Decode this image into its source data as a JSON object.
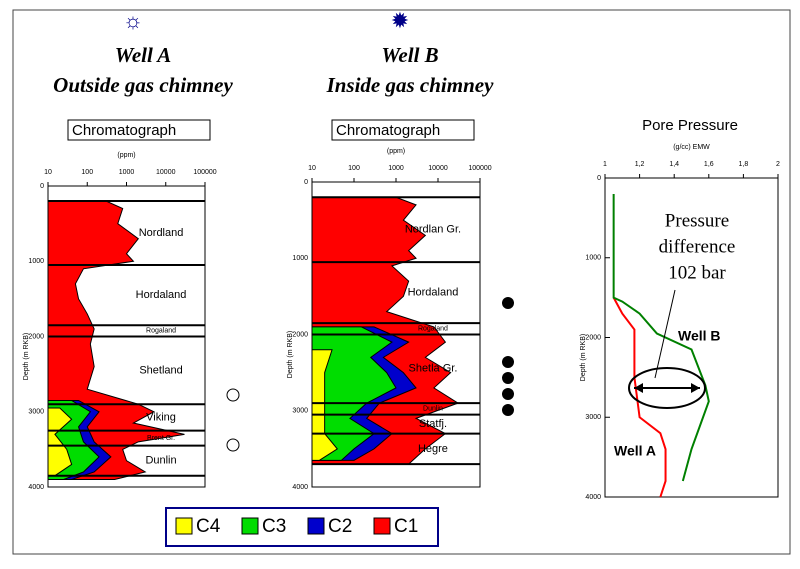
{
  "chart_data": [
    {
      "type": "chromatograph",
      "title": "Well A",
      "subtitle": "Outside gas chimney",
      "label": "Chromatograph",
      "xlabel": "(ppm)",
      "ylabel": "Depth (m RKB)",
      "xscale": "log",
      "xlim": [
        10,
        100000
      ],
      "xticks": [
        10,
        100,
        1000,
        10000,
        100000
      ],
      "ylim": [
        0,
        4000
      ],
      "yticks": [
        0,
        1000,
        2000,
        3000,
        4000
      ],
      "formations": [
        {
          "name": "Nordland",
          "top": 200
        },
        {
          "name": "Hordaland",
          "top": 1050
        },
        {
          "name": "Rogaland",
          "top": 1850
        },
        {
          "name": "Shetland",
          "top": 2000
        },
        {
          "name": "Viking",
          "top": 2900
        },
        {
          "name": "Brent Gr.",
          "top": 3250
        },
        {
          "name": "Dunlin",
          "top": 3450
        }
      ],
      "base": 3850,
      "series": [
        {
          "name": "C4",
          "color": "#ffff00",
          "y": [
            2950,
            3100,
            3300,
            3500,
            3700,
            3850
          ],
          "x": [
            20,
            40,
            15,
            30,
            40,
            15
          ]
        },
        {
          "name": "C3",
          "color": "#00dd00",
          "y": [
            2850,
            3000,
            3200,
            3400,
            3600,
            3800,
            3900
          ],
          "x": [
            40,
            120,
            60,
            80,
            200,
            80,
            25
          ]
        },
        {
          "name": "C2",
          "color": "#0000cc",
          "y": [
            2850,
            3000,
            3200,
            3400,
            3600,
            3800,
            3900
          ],
          "x": [
            60,
            200,
            100,
            150,
            400,
            150,
            40
          ]
        },
        {
          "name": "C1",
          "color": "#ff0000",
          "y": [
            200,
            300,
            500,
            700,
            900,
            1000,
            1100,
            1300,
            1500,
            1700,
            1900,
            2100,
            2400,
            2700,
            2900,
            3000,
            3150,
            3300,
            3400,
            3500,
            3650,
            3800,
            3900
          ],
          "x": [
            300,
            800,
            600,
            2000,
            1000,
            1500,
            80,
            50,
            60,
            100,
            150,
            120,
            150,
            100,
            2000,
            5000,
            1500,
            30000,
            2000,
            800,
            1000,
            3000,
            500
          ]
        }
      ]
    },
    {
      "type": "chromatograph",
      "title": "Well B",
      "subtitle": "Inside gas chimney",
      "label": "Chromatograph",
      "xlabel": "(ppm)",
      "ylabel": "Depth (m RKB)",
      "xscale": "log",
      "xlim": [
        10,
        100000
      ],
      "xticks": [
        10,
        100,
        1000,
        10000,
        100000
      ],
      "ylim": [
        0,
        4000
      ],
      "yticks": [
        0,
        1000,
        2000,
        3000,
        4000
      ],
      "formations": [
        {
          "name": "Nordlan Gr.",
          "top": 200
        },
        {
          "name": "Hordaland",
          "top": 1050
        },
        {
          "name": "Rogaland",
          "top": 1850
        },
        {
          "name": "Shetla Gr.",
          "top": 2000
        },
        {
          "name": "Dunlin",
          "top": 2900
        },
        {
          "name": "Statfj.",
          "top": 3050
        },
        {
          "name": "Hegre",
          "top": 3300
        }
      ],
      "base": 3700,
      "series": [
        {
          "name": "C4",
          "color": "#ffff00",
          "y": [
            2200,
            2500,
            3300,
            3500,
            3650
          ],
          "x": [
            30,
            20,
            20,
            40,
            15
          ]
        },
        {
          "name": "C3",
          "color": "#00dd00",
          "y": [
            1900,
            2100,
            2300,
            2500,
            2700,
            2900,
            3100,
            3300,
            3500,
            3650
          ],
          "x": [
            150,
            800,
            250,
            600,
            1000,
            200,
            80,
            300,
            100,
            50
          ]
        },
        {
          "name": "C2",
          "color": "#0000cc",
          "y": [
            1900,
            2100,
            2300,
            2500,
            2700,
            2900,
            3100,
            3300,
            3500,
            3650
          ],
          "x": [
            300,
            2000,
            500,
            1500,
            3000,
            400,
            200,
            800,
            300,
            100
          ]
        },
        {
          "name": "C1",
          "color": "#ff0000",
          "y": [
            200,
            300,
            500,
            700,
            900,
            1000,
            1100,
            1300,
            1500,
            1700,
            1900,
            2100,
            2300,
            2500,
            2700,
            2900,
            3100,
            3300,
            3500,
            3700
          ],
          "x": [
            1000,
            3000,
            1500,
            5000,
            2000,
            3000,
            800,
            2000,
            1500,
            600,
            8000,
            15000,
            5000,
            20000,
            8000,
            30000,
            3000,
            15000,
            5000,
            2000
          ]
        }
      ]
    },
    {
      "type": "line",
      "title": "Pore Pressure",
      "xlabel": "(g/cc) EMW",
      "ylabel": "Depth (m RKB)",
      "xlim": [
        1,
        2
      ],
      "xticks": [
        1,
        {
          "value": 1.2,
          "label": "1,2"
        },
        {
          "value": 1.4,
          "label": "1,4"
        },
        {
          "value": 1.6,
          "label": "1,6"
        },
        {
          "value": 1.8,
          "label": "1,8"
        },
        2
      ],
      "ylim": [
        0,
        4000
      ],
      "yticks": [
        0,
        1000,
        2000,
        3000,
        4000
      ],
      "annotation_lines": [
        "Pressure",
        "difference",
        "102 bar"
      ],
      "series": [
        {
          "name": "Well A",
          "color": "#ff0000",
          "x": [
            1.05,
            1.1,
            1.17,
            1.17,
            1.2,
            1.32,
            1.35,
            1.35,
            1.32
          ],
          "y": [
            1500,
            1700,
            1900,
            2500,
            3000,
            3200,
            3400,
            3800,
            4000
          ]
        },
        {
          "name": "Well B",
          "color": "#008000",
          "x": [
            1.05,
            1.05,
            1.1,
            1.2,
            1.3,
            1.5,
            1.58,
            1.6,
            1.55,
            1.5,
            1.45
          ],
          "y": [
            200,
            1500,
            1550,
            1700,
            1950,
            2150,
            2600,
            2800,
            3100,
            3400,
            3800
          ]
        }
      ]
    }
  ]
}
